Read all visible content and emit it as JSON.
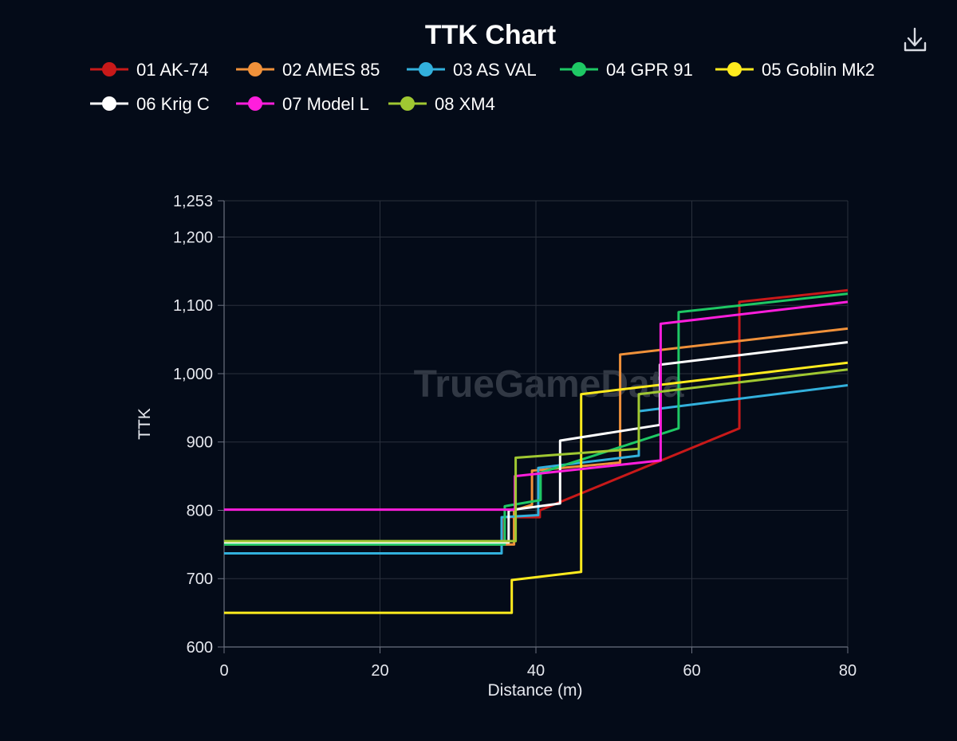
{
  "toolbar": {
    "download_icon": "download-icon"
  },
  "chart_data": {
    "type": "line",
    "title": "TTK Chart",
    "xlabel": "Distance (m)",
    "ylabel": "TTK",
    "watermark": "TrueGameData",
    "xlim": [
      0,
      80
    ],
    "ylim": [
      600,
      1253
    ],
    "x_ticks": [
      0,
      20,
      40,
      60,
      80
    ],
    "x_tick_labels": [
      "0",
      "20",
      "40",
      "60",
      "80"
    ],
    "y_ticks": [
      600,
      700,
      800,
      900,
      1000,
      1100,
      1200,
      1253
    ],
    "y_tick_labels": [
      "600",
      "700",
      "800",
      "900",
      "1,000",
      "1,100",
      "1,200",
      "1,253"
    ],
    "grid": true,
    "legend_position": "top",
    "series": [
      {
        "name": "01 AK-74",
        "color": "#c81919",
        "points": [
          [
            0,
            753
          ],
          [
            35.9,
            753
          ],
          [
            35.9,
            790
          ],
          [
            40.5,
            790
          ],
          [
            40.5,
            800
          ],
          [
            66.1,
            920
          ],
          [
            66.1,
            1105
          ],
          [
            80,
            1122
          ]
        ]
      },
      {
        "name": "02 AMES 85",
        "color": "#f0913a",
        "points": [
          [
            0,
            750
          ],
          [
            37.2,
            750
          ],
          [
            37.2,
            800
          ],
          [
            39.5,
            808
          ],
          [
            39.5,
            858
          ],
          [
            50.8,
            870
          ],
          [
            50.8,
            1028
          ],
          [
            80,
            1066
          ]
        ]
      },
      {
        "name": "03 AS VAL",
        "color": "#32b0dc",
        "points": [
          [
            0,
            737
          ],
          [
            35.6,
            737
          ],
          [
            35.6,
            790
          ],
          [
            40.3,
            793
          ],
          [
            40.3,
            862
          ],
          [
            53.2,
            880
          ],
          [
            53.2,
            945
          ],
          [
            80,
            983
          ]
        ]
      },
      {
        "name": "04 GPR 91",
        "color": "#1ec864",
        "points": [
          [
            0,
            750
          ],
          [
            36.0,
            750
          ],
          [
            36.0,
            806
          ],
          [
            40.6,
            815
          ],
          [
            40.6,
            855
          ],
          [
            58.3,
            920
          ],
          [
            58.3,
            1090
          ],
          [
            80,
            1117
          ]
        ]
      },
      {
        "name": "05 Goblin Mk2",
        "color": "#ffeb1e",
        "points": [
          [
            0,
            650
          ],
          [
            36.9,
            650
          ],
          [
            36.9,
            698
          ],
          [
            45.8,
            710
          ],
          [
            45.8,
            970
          ],
          [
            80,
            1016
          ]
        ]
      },
      {
        "name": "06 Krig C",
        "color": "#ffffff",
        "points": [
          [
            0,
            753
          ],
          [
            36.5,
            753
          ],
          [
            36.5,
            800
          ],
          [
            43.1,
            810
          ],
          [
            43.1,
            902
          ],
          [
            55.9,
            925
          ],
          [
            55.9,
            1013
          ],
          [
            80,
            1046
          ]
        ]
      },
      {
        "name": "07 Model L",
        "color": "#ff1edc",
        "points": [
          [
            0,
            801
          ],
          [
            37.3,
            801
          ],
          [
            37.3,
            850
          ],
          [
            56.0,
            873
          ],
          [
            56.0,
            1073
          ],
          [
            80,
            1105
          ]
        ]
      },
      {
        "name": "08 XM4",
        "color": "#a0c832",
        "points": [
          [
            0,
            755
          ],
          [
            37.4,
            755
          ],
          [
            37.4,
            877
          ],
          [
            53.2,
            890
          ],
          [
            53.2,
            970
          ],
          [
            80,
            1006
          ]
        ]
      }
    ]
  }
}
